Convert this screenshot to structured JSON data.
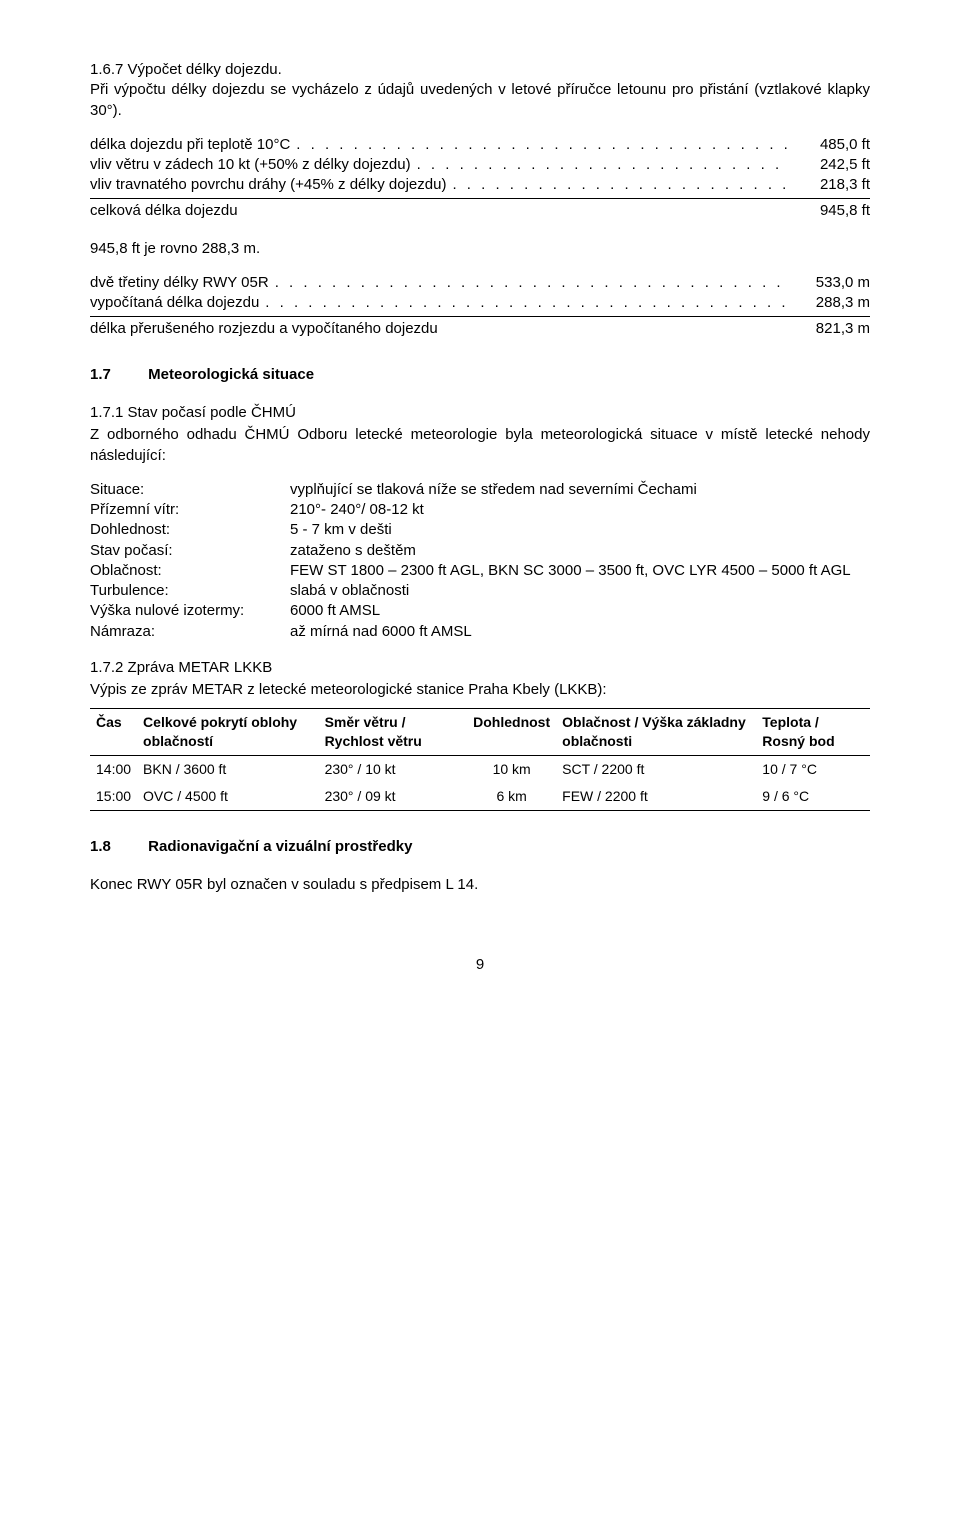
{
  "sec_167": {
    "title": "1.6.7 Výpočet délky dojezdu.",
    "body": "Při výpočtu délky dojezdu se vycházelo z údajů uvedených v letové příručce letounu pro přistání (vztlakové klapky 30°)."
  },
  "block_ft": {
    "rows": [
      {
        "label": "délka dojezdu při teplotě 10°C",
        "val": "485,0 ft",
        "dots": true
      },
      {
        "label": "vliv větru v zádech 10 kt (+50%  z délky dojezdu)",
        "val": "242,5 ft",
        "dots": true
      },
      {
        "label": "vliv travnatého povrchu dráhy (+45% z délky dojezdu)",
        "val": "218,3 ft",
        "dots": true
      }
    ],
    "sum": {
      "label": "celková délka dojezdu",
      "val": "945,8 ft"
    },
    "note": "945,8 ft je rovno 288,3 m."
  },
  "block_m": {
    "rows": [
      {
        "label": "dvě třetiny délky RWY 05R",
        "val": "533,0 m",
        "dots": true
      },
      {
        "label": "vypočítaná délka dojezdu",
        "val": "288,3 m",
        "dots": true
      }
    ],
    "sum": {
      "label": "délka přerušeného rozjezdu a vypočítaného dojezdu",
      "val": "821,3 m"
    }
  },
  "sec_17": {
    "num": "1.7",
    "title": "Meteorologická situace"
  },
  "sec_171": {
    "title": "1.7.1 Stav počasí podle ČHMÚ",
    "body": "Z odborného odhadu ČHMÚ Odboru letecké meteorologie byla meteorologická situace v místě letecké nehody následující:"
  },
  "defs": [
    {
      "k": "Situace:",
      "v": "vyplňující se tlaková níže se středem nad severními Čechami"
    },
    {
      "k": "Přízemní vítr:",
      "v": "210°- 240°/ 08-12 kt"
    },
    {
      "k": "Dohlednost:",
      "v": "5 - 7 km v dešti"
    },
    {
      "k": "Stav počasí:",
      "v": "zataženo s deštěm"
    },
    {
      "k": "Oblačnost:",
      "v": "FEW ST 1800 – 2300 ft AGL, BKN SC 3000 – 3500 ft, OVC LYR 4500 – 5000 ft AGL"
    },
    {
      "k": "Turbulence:",
      "v": "slabá v oblačnosti"
    },
    {
      "k": "Výška nulové izotermy:",
      "v": "6000 ft AMSL"
    },
    {
      "k": "Námraza:",
      "v": "až mírná nad 6000 ft AMSL"
    }
  ],
  "sec_172": {
    "title": "1.7.2 Zpráva METAR LKKB",
    "body": "Výpis ze zpráv METAR z letecké meteorologické stanice Praha Kbely (LKKB):"
  },
  "metar": {
    "headers": [
      "Čas",
      "Celkové pokrytí oblohy oblačností",
      "Směr větru / Rychlost větru",
      "Dohlednost",
      "Oblačnost / Výška základny oblačnosti",
      "Teplota / Rosný bod"
    ],
    "rows": [
      [
        "14:00",
        "BKN / 3600 ft",
        "230° / 10 kt",
        "10 km",
        "SCT  / 2200 ft",
        "10 / 7 °C"
      ],
      [
        "15:00",
        "OVC / 4500 ft",
        "230° / 09 kt",
        "6 km",
        "FEW / 2200 ft",
        "9 / 6 °C"
      ]
    ]
  },
  "sec_18": {
    "num": "1.8",
    "title": "Radionavigační a vizuální prostředky",
    "body": "Konec RWY 05R byl označen v souladu s předpisem L 14."
  },
  "page": "9",
  "dots_fill": ". . . . . . . . . . . . . . . . . . . . . . . . . . . . . . . . . . . . . . . . . . . . . . . . . ."
}
